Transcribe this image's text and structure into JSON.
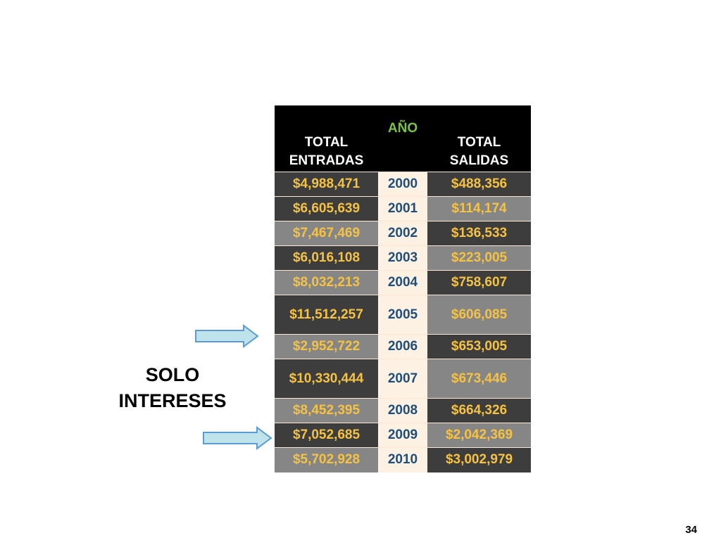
{
  "table": {
    "headers": {
      "entradas": "TOTAL\nENTRADAS",
      "anio": "AÑO",
      "salidas": "TOTAL\nSALIDAS"
    },
    "rows": [
      {
        "entradas": "$4,988,471",
        "anio": "2000",
        "salidas": "$488,356"
      },
      {
        "entradas": "$6,605,639",
        "anio": "2001",
        "salidas": "$114,174"
      },
      {
        "entradas": "$7,467,469",
        "anio": "2002",
        "salidas": "$136,533"
      },
      {
        "entradas": "$6,016,108",
        "anio": "2003",
        "salidas": "$223,005"
      },
      {
        "entradas": "$8,032,213",
        "anio": "2004",
        "salidas": "$758,607"
      },
      {
        "entradas": "$11,512,257",
        "anio": "2005",
        "salidas": "$606,085"
      },
      {
        "entradas": "$2,952,722",
        "anio": "2006",
        "salidas": "$653,005"
      },
      {
        "entradas": "$10,330,444",
        "anio": "2007",
        "salidas": "$673,446"
      },
      {
        "entradas": "$8,452,395",
        "anio": "2008",
        "salidas": "$664,326"
      },
      {
        "entradas": "$7,052,685",
        "anio": "2009",
        "salidas": "$2,042,369"
      },
      {
        "entradas": "$5,702,928",
        "anio": "2010",
        "salidas": "$3,002,979"
      }
    ]
  },
  "side_label": "SOLO\nINTERESES",
  "page_number": "34",
  "colors": {
    "header_bg": "#000000",
    "header_text": "#ffffff",
    "year_header_text": "#7cc242",
    "amount_text": "#f5c243",
    "year_cell_bg": "#fdf1e4",
    "year_text": "#1f4e79",
    "dark_cell_bg": "#3d3d3d",
    "light_cell_bg": "#868686",
    "arrow_fill": "#bfe3ea",
    "arrow_stroke": "#5b9bd5"
  }
}
